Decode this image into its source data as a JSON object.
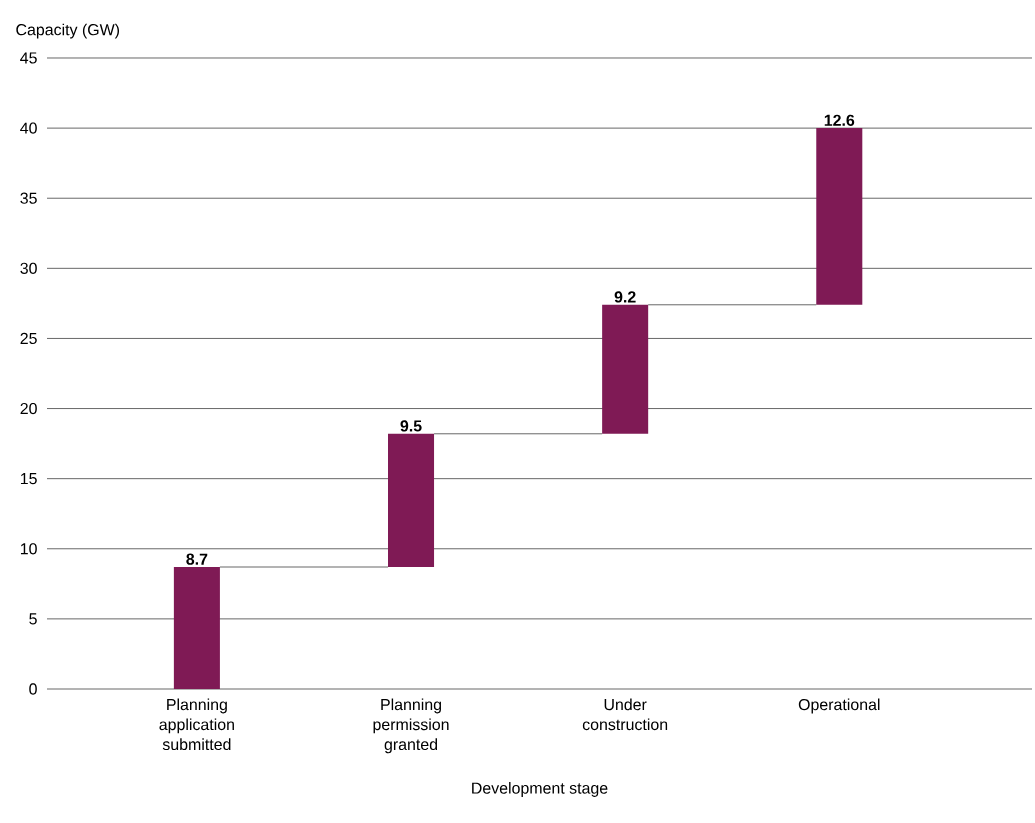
{
  "chart_data": {
    "type": "bar",
    "xlabel": "Development stage",
    "ylabel": "Capacity (GW)",
    "categories": [
      "Planning application submitted",
      "Planning permission granted",
      "Under construction",
      "Operational"
    ],
    "values": [
      8.7,
      9.5,
      9.2,
      12.6
    ],
    "base": [
      0,
      8.7,
      18.2,
      27.4
    ],
    "color": "#7f1a55",
    "ylim": [
      0,
      45
    ],
    "yticks": [
      0,
      5,
      10,
      15,
      20,
      25,
      30,
      35,
      40,
      45
    ],
    "grid": "y",
    "data_labels": true
  }
}
